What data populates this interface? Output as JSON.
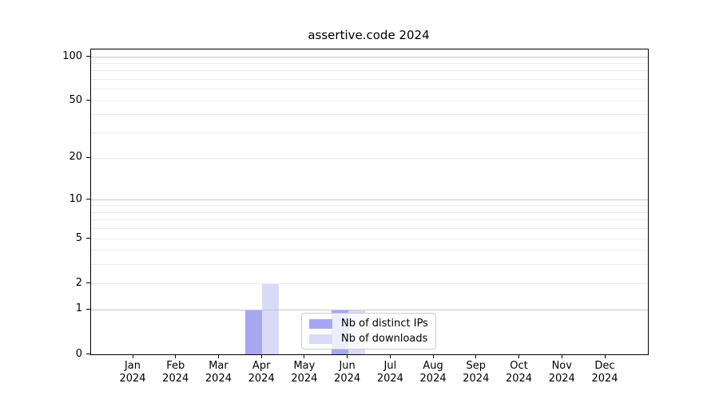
{
  "chart_data": {
    "type": "bar",
    "title": "assertive.code 2024",
    "categories": [
      "Jan 2024",
      "Feb 2024",
      "Mar 2024",
      "Apr 2024",
      "May 2024",
      "Jun 2024",
      "Jul 2024",
      "Aug 2024",
      "Sep 2024",
      "Oct 2024",
      "Nov 2024",
      "Dec 2024"
    ],
    "series": [
      {
        "name": "Nb of distinct IPs",
        "color": "#a7a7f0",
        "values": [
          0,
          0,
          0,
          1,
          0,
          1,
          0,
          0,
          0,
          0,
          0,
          0
        ]
      },
      {
        "name": "Nb of downloads",
        "color": "#d9d9f8",
        "values": [
          0,
          0,
          0,
          2,
          0,
          1,
          0,
          0,
          0,
          0,
          0,
          0
        ]
      }
    ],
    "yscale": "log1p",
    "y_tick_values": [
      0,
      1,
      2,
      5,
      10,
      20,
      50,
      100
    ],
    "y_tick_labels": [
      "0",
      "1",
      "2",
      "5",
      "10",
      "20",
      "50",
      "100"
    ],
    "ylim": [
      0,
      112
    ],
    "xlabel": "",
    "ylabel": "",
    "grid": "horizontal",
    "legend_position": "lower center"
  },
  "colors": {
    "background": "#ffffff",
    "spine": "#000000",
    "grid_major": "#c8c8c8",
    "grid_minor": "#ebebeb",
    "legend_border": "#cccccc",
    "text": "#000000"
  }
}
